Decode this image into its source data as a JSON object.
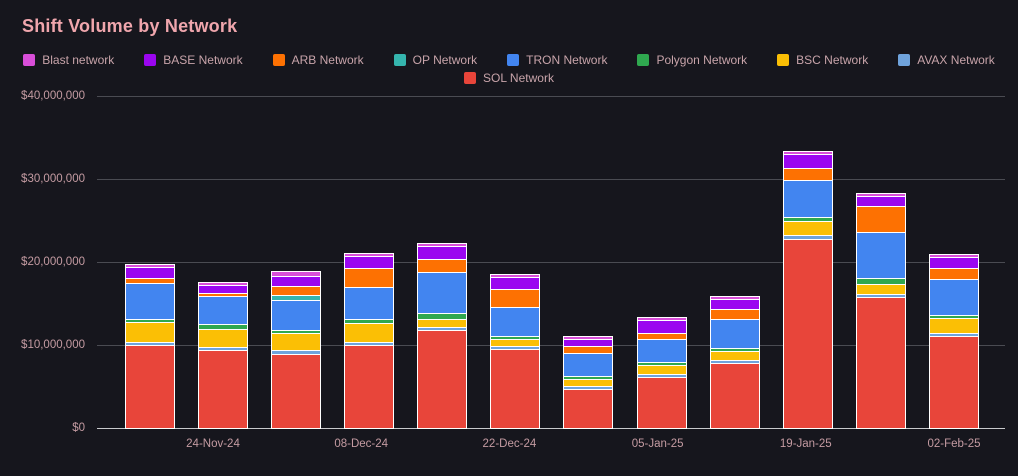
{
  "title": "Shift Volume by Network",
  "colors": {
    "background": "#16161d",
    "title_text": "#f0a6ad",
    "axis_text": "#c49ba2",
    "gridline": "#4a4b52",
    "zero_line": "#c9cacd",
    "segment_border": "#ffffff"
  },
  "chart_data": {
    "type": "bar",
    "stacked": true,
    "title": "Shift Volume by Network",
    "xlabel": "",
    "ylabel": "",
    "grid": true,
    "legend_position": "top-center",
    "bar_count": 12,
    "x_tick_labels": [
      "24-Nov-24",
      "08-Dec-24",
      "22-Dec-24",
      "05-Jan-25",
      "19-Jan-25",
      "02-Feb-25"
    ],
    "y_axis": {
      "min": 0,
      "max": 40000000,
      "tick_values": [
        0,
        10000000,
        20000000,
        30000000,
        40000000
      ],
      "tick_labels": [
        "$0",
        "$10,000,000",
        "$20,000,000",
        "$30,000,000",
        "$40,000,000"
      ]
    },
    "legend_rows": [
      [
        0,
        1,
        2,
        3,
        4,
        5,
        6,
        7
      ],
      [
        8
      ]
    ],
    "stack_order_bottom_to_top": [
      "SOL Network",
      "AVAX Network",
      "BSC Network",
      "Polygon Network",
      "TRON Network",
      "OP Network",
      "ARB Network",
      "BASE Network",
      "Blast network"
    ],
    "series": [
      {
        "name": "Blast network",
        "color": "#d94ed9",
        "values": [
          250000,
          300000,
          500000,
          200000,
          350000,
          300000,
          300000,
          300000,
          300000,
          350000,
          100000,
          350000
        ]
      },
      {
        "name": "BASE Network",
        "color": "#9b06f0",
        "values": [
          1300000,
          850000,
          1200000,
          1500000,
          1600000,
          1400000,
          850000,
          1500000,
          1300000,
          1700000,
          1100000,
          1350000
        ]
      },
      {
        "name": "ARB Network",
        "color": "#fd7102",
        "values": [
          550000,
          300000,
          1100000,
          2300000,
          1600000,
          2200000,
          750000,
          800000,
          1200000,
          1400000,
          3200000,
          1300000
        ]
      },
      {
        "name": "OP Network",
        "color": "#35b5ae",
        "values": [
          0,
          0,
          650000,
          0,
          0,
          0,
          0,
          0,
          0,
          0,
          0,
          0
        ]
      },
      {
        "name": "TRON Network",
        "color": "#4285f0",
        "values": [
          4400000,
          3400000,
          3600000,
          3900000,
          4900000,
          3400000,
          2800000,
          2800000,
          3500000,
          4400000,
          5500000,
          4400000
        ]
      },
      {
        "name": "Polygon Network",
        "color": "#2fa84f",
        "values": [
          400000,
          650000,
          400000,
          450000,
          700000,
          400000,
          350000,
          350000,
          250000,
          550000,
          750000,
          350000
        ]
      },
      {
        "name": "BSC Network",
        "color": "#fbbf05",
        "values": [
          2400000,
          2100000,
          2000000,
          2300000,
          1000000,
          900000,
          900000,
          1000000,
          1100000,
          1700000,
          1200000,
          1800000
        ]
      },
      {
        "name": "AVAX Network",
        "color": "#6fa3dc",
        "values": [
          250000,
          450000,
          450000,
          350000,
          150000,
          250000,
          300000,
          150000,
          200000,
          450000,
          250000,
          350000
        ]
      },
      {
        "name": "SOL Network",
        "color": "#e8453a",
        "values": [
          10100000,
          9500000,
          9100000,
          10100000,
          11900000,
          9600000,
          4800000,
          6300000,
          7900000,
          22900000,
          15900000,
          11200000
        ]
      }
    ]
  }
}
